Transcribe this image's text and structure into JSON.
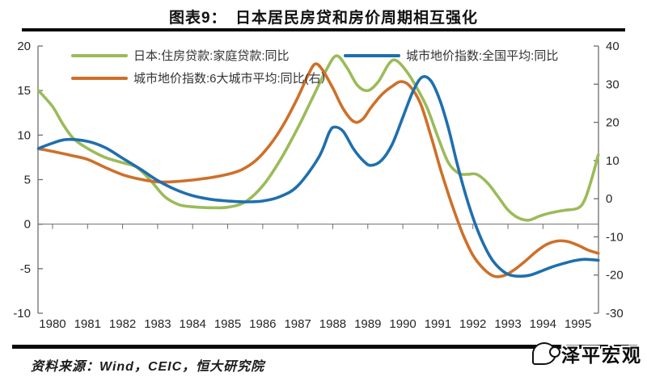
{
  "title": "图表9：　日本居民房贷和房价周期相互强化",
  "source_note": "资料来源：Wind，CEIC，恒大研究院",
  "logo_text": "泽平宏观",
  "colors": {
    "green": "#9bbb59",
    "orange": "#ce7029",
    "blue": "#1f6fad",
    "axis": "#6e6e6e",
    "tick_label": "#262626",
    "divider": "#0a0a0a"
  },
  "legend": [
    {
      "label": "日本:住房贷款:家庭贷款:同比",
      "color": "#9bbb59"
    },
    {
      "label": "城市地价指数:6大城市平均:同比(右）",
      "color": "#ce7029"
    },
    {
      "label": "城市地价指数:全国平均:同比",
      "color": "#1f6fad"
    }
  ],
  "chart_data": {
    "type": "line",
    "title": "日本居民房贷和房价周期相互强化",
    "grid": "zero-line-only",
    "legend_position": "top-inside",
    "x_axis": {
      "labels": [
        "1980",
        "1981",
        "1982",
        "1983",
        "1984",
        "1985",
        "1986",
        "1987",
        "1988",
        "1989",
        "1990",
        "1991",
        "1992",
        "1993",
        "1994",
        "1995"
      ],
      "tick_years": [
        1980,
        1981,
        1982,
        1983,
        1984,
        1985,
        1986,
        1987,
        1988,
        1989,
        1990,
        1991,
        1992,
        1993,
        1994,
        1995
      ],
      "range": [
        1979.585,
        1995.585
      ]
    },
    "y_left": {
      "ticks": [
        20,
        15,
        10,
        5,
        0,
        -5,
        -10
      ],
      "range": [
        -10,
        20
      ]
    },
    "y_right": {
      "ticks": [
        40,
        30,
        20,
        10,
        0,
        -10,
        -20,
        -30
      ],
      "range": [
        -30,
        40
      ]
    },
    "series": [
      {
        "name": "日本:住房贷款:家庭贷款:同比",
        "axis": "left",
        "color": "#9bbb59",
        "points": [
          [
            1979.6,
            15.0
          ],
          [
            1980,
            13.2
          ],
          [
            1980.3,
            11.2
          ],
          [
            1980.6,
            9.6
          ],
          [
            1981,
            8.5
          ],
          [
            1981.5,
            7.5
          ],
          [
            1982,
            6.9
          ],
          [
            1982.4,
            6.4
          ],
          [
            1982.8,
            4.9
          ],
          [
            1983.2,
            3.1
          ],
          [
            1983.6,
            2.2
          ],
          [
            1984,
            1.95
          ],
          [
            1984.5,
            1.85
          ],
          [
            1985,
            1.9
          ],
          [
            1985.5,
            2.5
          ],
          [
            1986,
            4.3
          ],
          [
            1986.5,
            7.2
          ],
          [
            1987,
            10.8
          ],
          [
            1987.4,
            14.0
          ],
          [
            1987.8,
            17.2
          ],
          [
            1988.1,
            18.9
          ],
          [
            1988.4,
            17.6
          ],
          [
            1988.7,
            15.6
          ],
          [
            1989.0,
            15.0
          ],
          [
            1989.3,
            16.0
          ],
          [
            1989.6,
            18.0
          ],
          [
            1989.8,
            18.4
          ],
          [
            1990.1,
            17.2
          ],
          [
            1990.4,
            15.3
          ],
          [
            1990.7,
            13.0
          ],
          [
            1991.0,
            9.8
          ],
          [
            1991.3,
            6.9
          ],
          [
            1991.6,
            5.7
          ],
          [
            1991.85,
            5.6
          ],
          [
            1992.1,
            5.6
          ],
          [
            1992.4,
            4.7
          ],
          [
            1992.7,
            3.2
          ],
          [
            1993,
            1.6
          ],
          [
            1993.3,
            0.7
          ],
          [
            1993.6,
            0.45
          ],
          [
            1993.9,
            0.9
          ],
          [
            1994.2,
            1.25
          ],
          [
            1994.6,
            1.55
          ],
          [
            1995,
            1.8
          ],
          [
            1995.2,
            2.8
          ],
          [
            1995.4,
            5.2
          ],
          [
            1995.58,
            7.8
          ]
        ]
      },
      {
        "name": "城市地价指数:6大城市平均:同比(右)",
        "axis": "right",
        "color": "#ce7029",
        "points": [
          [
            1979.6,
            13.1
          ],
          [
            1980,
            12.4
          ],
          [
            1980.5,
            11.4
          ],
          [
            1981,
            10.3
          ],
          [
            1981.5,
            8.2
          ],
          [
            1982,
            6.3
          ],
          [
            1982.5,
            5.1
          ],
          [
            1983,
            4.4
          ],
          [
            1983.5,
            4.5
          ],
          [
            1984,
            4.9
          ],
          [
            1984.5,
            5.5
          ],
          [
            1985,
            6.4
          ],
          [
            1985.4,
            7.6
          ],
          [
            1985.8,
            10.0
          ],
          [
            1986.2,
            14.0
          ],
          [
            1986.6,
            19.5
          ],
          [
            1987,
            26.5
          ],
          [
            1987.3,
            32.5
          ],
          [
            1987.5,
            35.3
          ],
          [
            1987.7,
            33.8
          ],
          [
            1988,
            29.0
          ],
          [
            1988.3,
            23.5
          ],
          [
            1988.6,
            20.2
          ],
          [
            1988.85,
            20.8
          ],
          [
            1989.1,
            24.0
          ],
          [
            1989.4,
            27.3
          ],
          [
            1989.7,
            29.5
          ],
          [
            1989.95,
            30.7
          ],
          [
            1990.2,
            29.5
          ],
          [
            1990.5,
            25.0
          ],
          [
            1990.8,
            16.5
          ],
          [
            1991.1,
            7.0
          ],
          [
            1991.4,
            -1.5
          ],
          [
            1991.7,
            -9.0
          ],
          [
            1992,
            -14.8
          ],
          [
            1992.3,
            -18.3
          ],
          [
            1992.6,
            -20.3
          ],
          [
            1992.9,
            -20.1
          ],
          [
            1993.2,
            -18.5
          ],
          [
            1993.5,
            -16.3
          ],
          [
            1993.8,
            -13.9
          ],
          [
            1994.1,
            -12.0
          ],
          [
            1994.4,
            -11.1
          ],
          [
            1994.7,
            -11.2
          ],
          [
            1995,
            -12.2
          ],
          [
            1995.3,
            -13.5
          ],
          [
            1995.58,
            -14.3
          ]
        ]
      },
      {
        "name": "城市地价指数:全国平均:同比",
        "axis": "left",
        "color": "#1f6fad",
        "points": [
          [
            1979.6,
            8.5
          ],
          [
            1980,
            9.1
          ],
          [
            1980.4,
            9.5
          ],
          [
            1981,
            9.3
          ],
          [
            1981.5,
            8.6
          ],
          [
            1982,
            7.4
          ],
          [
            1982.5,
            6.2
          ],
          [
            1983,
            4.9
          ],
          [
            1983.5,
            3.9
          ],
          [
            1984,
            3.2
          ],
          [
            1984.5,
            2.8
          ],
          [
            1985,
            2.6
          ],
          [
            1985.5,
            2.5
          ],
          [
            1986,
            2.6
          ],
          [
            1986.5,
            3.1
          ],
          [
            1987,
            4.3
          ],
          [
            1987.6,
            7.5
          ],
          [
            1987.9,
            10.3
          ],
          [
            1988.05,
            10.9
          ],
          [
            1988.3,
            10.4
          ],
          [
            1988.6,
            8.4
          ],
          [
            1988.9,
            7.0
          ],
          [
            1989.1,
            6.6
          ],
          [
            1989.4,
            7.2
          ],
          [
            1989.7,
            9.0
          ],
          [
            1990.0,
            12.0
          ],
          [
            1990.3,
            15.0
          ],
          [
            1990.55,
            16.5
          ],
          [
            1990.8,
            16.1
          ],
          [
            1991.05,
            14.0
          ],
          [
            1991.3,
            10.8
          ],
          [
            1991.55,
            6.8
          ],
          [
            1991.8,
            3.2
          ],
          [
            1992.05,
            0.2
          ],
          [
            1992.3,
            -2.2
          ],
          [
            1992.55,
            -4.0
          ],
          [
            1992.8,
            -5.1
          ],
          [
            1993.05,
            -5.7
          ],
          [
            1993.35,
            -5.85
          ],
          [
            1993.65,
            -5.7
          ],
          [
            1994,
            -5.2
          ],
          [
            1994.3,
            -4.75
          ],
          [
            1994.6,
            -4.4
          ],
          [
            1994.9,
            -4.1
          ],
          [
            1995.2,
            -3.95
          ],
          [
            1995.58,
            -4.05
          ]
        ]
      }
    ]
  }
}
